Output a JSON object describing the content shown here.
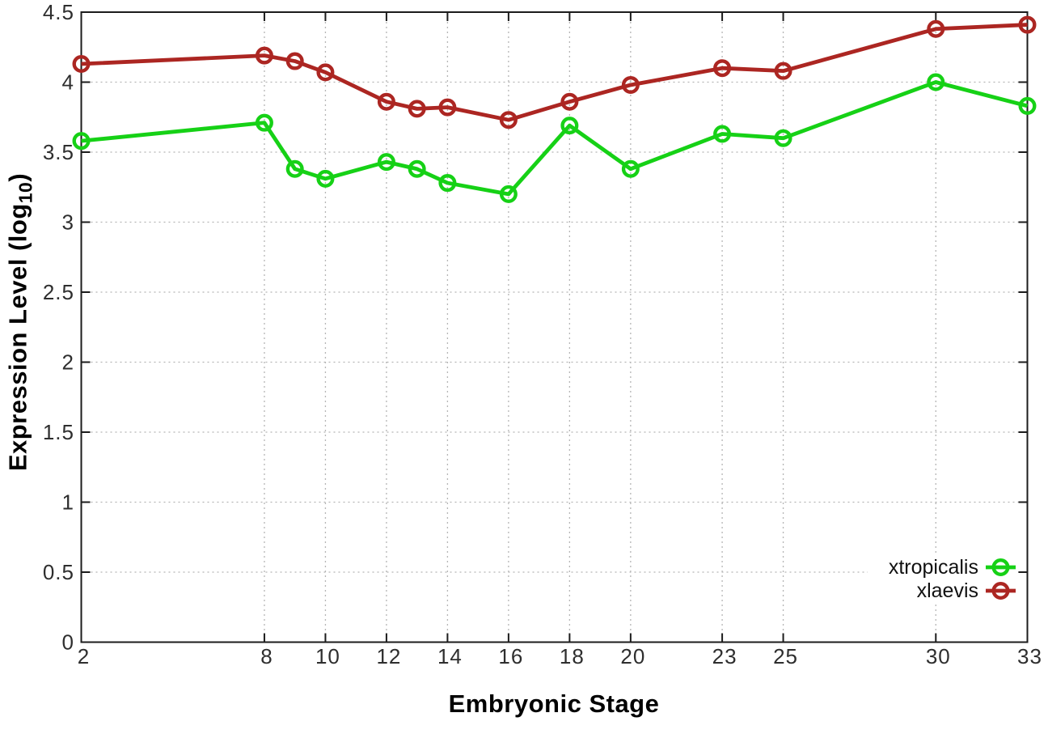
{
  "chart_data": {
    "type": "line",
    "title": "",
    "xlabel": "Embryonic Stage",
    "ylabel": "Expression Level (log10)",
    "ylabel_parts": {
      "main": "Expression Level (log",
      "sub": "10",
      "end": ")"
    },
    "x": [
      2,
      8,
      9,
      10,
      12,
      13,
      14,
      16,
      18,
      20,
      23,
      25,
      30,
      33
    ],
    "series": [
      {
        "name": "xtropicalis",
        "color": "#16d116",
        "marker": "open-circle",
        "values": [
          3.58,
          3.71,
          3.38,
          3.31,
          3.43,
          3.38,
          3.28,
          3.2,
          3.69,
          3.38,
          3.63,
          3.6,
          4.0,
          3.83
        ]
      },
      {
        "name": "xlaevis",
        "color": "#ac2622",
        "marker": "open-circle",
        "values": [
          4.13,
          4.19,
          4.15,
          4.07,
          3.86,
          3.81,
          3.82,
          3.73,
          3.86,
          3.98,
          4.1,
          4.08,
          4.38,
          4.41
        ]
      }
    ],
    "xlim": [
      2,
      33
    ],
    "ylim": [
      0,
      4.5
    ],
    "xticks": [
      2,
      8,
      10,
      12,
      14,
      16,
      18,
      20,
      23,
      25,
      30,
      33
    ],
    "xtick_labels": [
      "2",
      "8",
      "10",
      "12",
      "14",
      "16",
      "18",
      "20",
      "23",
      "25",
      "30",
      "33"
    ],
    "yticks": [
      0,
      0.5,
      1,
      1.5,
      2,
      2.5,
      3,
      3.5,
      4,
      4.5
    ],
    "ytick_labels": [
      "0",
      "0.5",
      "1",
      "1.5",
      "2",
      "2.5",
      "3",
      "3.5",
      "4",
      "4.5"
    ],
    "grid": true,
    "grid_style": "dotted",
    "legend_position": "bottom-right-inside",
    "legend_opaque": true
  },
  "colors": {
    "background": "#ffffff",
    "axis_border": "#1c1c1c",
    "grid": "#b5b5b5",
    "tick_text": "#2e2e2e",
    "title_text": "#000000"
  }
}
